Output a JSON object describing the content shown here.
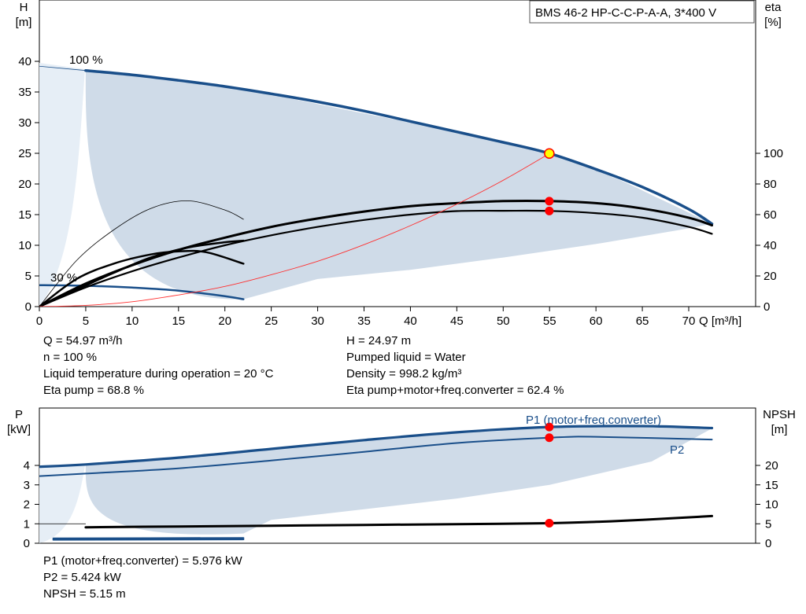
{
  "pump_model": "BMS 46-2 HP-C-C-P-A-A, 3*400 V",
  "chart_data": [
    {
      "type": "line",
      "name": "head-efficiency",
      "x_axis": {
        "label": "Q [m³/h]",
        "min": 0,
        "max": 75,
        "ticks": [
          0,
          5,
          10,
          15,
          20,
          25,
          30,
          35,
          40,
          45,
          50,
          55,
          60,
          65,
          70
        ]
      },
      "y_axis_left": {
        "label_line1": "H",
        "label_line2": "[m]",
        "min": 0,
        "max": 40,
        "ticks": [
          0,
          5,
          10,
          15,
          20,
          25,
          30,
          35,
          40
        ]
      },
      "y_axis_right": {
        "label_line1": "eta",
        "label_line2": "[%]",
        "min": 0,
        "max": 100,
        "ticks": [
          0,
          20,
          40,
          60,
          80,
          100
        ]
      },
      "speed_labels": {
        "max": "100 %",
        "min": "30 %"
      },
      "operating_region": [
        [
          0,
          39.2
        ],
        [
          5,
          38.5
        ],
        [
          15,
          36.8
        ],
        [
          25,
          34.5
        ],
        [
          35,
          31.5
        ],
        [
          45,
          28.5
        ],
        [
          55,
          25
        ],
        [
          62,
          21
        ],
        [
          67,
          17.5
        ],
        [
          72.5,
          13.5
        ],
        [
          69,
          12.5
        ],
        [
          60,
          10.2
        ],
        [
          50,
          8
        ],
        [
          40,
          6
        ],
        [
          30,
          4.5
        ],
        [
          22,
          1.2
        ]
      ],
      "series": [
        {
          "name": "",
          "role": "head-100",
          "axis": "left",
          "points": [
            [
              5,
              38.5
            ],
            [
              10,
              37.8
            ],
            [
              15,
              36.9
            ],
            [
              20,
              35.9
            ],
            [
              25,
              34.7
            ],
            [
              30,
              33.4
            ],
            [
              35,
              31.9
            ],
            [
              40,
              30.2
            ],
            [
              45,
              28.5
            ],
            [
              50,
              26.8
            ],
            [
              55,
              24.97
            ],
            [
              60,
              22.4
            ],
            [
              65,
              19.5
            ],
            [
              70,
              15.9
            ],
            [
              72.5,
              13.5
            ]
          ]
        },
        {
          "name": "",
          "role": "head-30",
          "axis": "left",
          "points": [
            [
              0,
              3.5
            ],
            [
              5,
              3.4
            ],
            [
              10,
              3.1
            ],
            [
              15,
              2.6
            ],
            [
              20,
              1.7
            ],
            [
              22,
              1.2
            ]
          ]
        },
        {
          "name": "",
          "role": "eta-pump-motor-conv",
          "axis": "right",
          "points": [
            [
              0,
              0
            ],
            [
              5,
              12.5
            ],
            [
              10,
              23
            ],
            [
              15,
              32
            ],
            [
              20,
              40
            ],
            [
              25,
              46.5
            ],
            [
              30,
              52
            ],
            [
              35,
              56.5
            ],
            [
              40,
              60
            ],
            [
              45,
              62.3
            ],
            [
              50,
              62.5
            ],
            [
              55,
              62.4
            ],
            [
              60,
              61
            ],
            [
              65,
              58
            ],
            [
              70,
              52
            ],
            [
              72.5,
              47.5
            ]
          ]
        },
        {
          "name": "",
          "role": "eta-pump",
          "axis": "right",
          "points": [
            [
              0,
              0
            ],
            [
              5,
              15
            ],
            [
              10,
              27
            ],
            [
              15,
              37
            ],
            [
              20,
              45
            ],
            [
              25,
              52
            ],
            [
              30,
              57.5
            ],
            [
              35,
              62
            ],
            [
              40,
              65.5
            ],
            [
              45,
              67.5
            ],
            [
              50,
              68.8
            ],
            [
              55,
              68.8
            ],
            [
              60,
              67.5
            ],
            [
              65,
              64
            ],
            [
              70,
              58
            ],
            [
              72.5,
              53
            ]
          ]
        },
        {
          "name": "",
          "role": "eta-pump-30",
          "axis": "right",
          "points": [
            [
              0,
              0
            ],
            [
              4,
              11
            ],
            [
              8,
              22
            ],
            [
              12,
              32
            ],
            [
              16,
              38.5
            ],
            [
              20,
              42
            ],
            [
              22,
              43
            ]
          ]
        },
        {
          "name": "",
          "role": "eta-pump-motor-30",
          "axis": "right",
          "points": [
            [
              0,
              0
            ],
            [
              4,
              18
            ],
            [
              8,
              28
            ],
            [
              12,
              34
            ],
            [
              15,
              36
            ],
            [
              18,
              35.5
            ],
            [
              22,
              28
            ]
          ]
        },
        {
          "name": "",
          "role": "eta-thin-low",
          "axis": "right",
          "points": [
            [
              0,
              0
            ],
            [
              4,
              30
            ],
            [
              8,
              50
            ],
            [
              12,
              64
            ],
            [
              16,
              69
            ],
            [
              20,
              63
            ],
            [
              22,
              57
            ]
          ]
        },
        {
          "name": "",
          "role": "system-curve",
          "axis": "left",
          "points": [
            [
              0,
              0
            ],
            [
              5,
              0.2
            ],
            [
              10,
              0.8
            ],
            [
              15,
              1.9
            ],
            [
              20,
              3.3
            ],
            [
              25,
              5.2
            ],
            [
              30,
              7.4
            ],
            [
              35,
              10.1
            ],
            [
              40,
              13.2
            ],
            [
              45,
              16.7
            ],
            [
              50,
              20.6
            ],
            [
              55,
              24.97
            ]
          ]
        }
      ],
      "markers": [
        {
          "role": "duty-point",
          "x": 54.97,
          "y": 24.97,
          "axis": "left"
        },
        {
          "role": "eta-pump-point",
          "x": 54.97,
          "y": 68.8,
          "axis": "right"
        },
        {
          "role": "eta-total-point",
          "x": 54.97,
          "y": 62.4,
          "axis": "right"
        }
      ]
    },
    {
      "type": "line",
      "name": "power-npsh",
      "x_axis": {
        "min": 0,
        "max": 75
      },
      "y_axis_left": {
        "label_line1": "P",
        "label_line2": "[kW]",
        "min": 0,
        "max": 6,
        "ticks": [
          0,
          1,
          2,
          3,
          4
        ]
      },
      "y_axis_right": {
        "label_line1": "NPSH",
        "label_line2": "[m]",
        "min": 0,
        "max": 30,
        "ticks": [
          0,
          5,
          10,
          15,
          20
        ]
      },
      "operating_region": [
        [
          0,
          3.95
        ],
        [
          5,
          4.05
        ],
        [
          20,
          4.6
        ],
        [
          35,
          5.3
        ],
        [
          55,
          5.98
        ],
        [
          65,
          5.95
        ],
        [
          72.5,
          5.9
        ],
        [
          66,
          4.2
        ],
        [
          55,
          3.0
        ],
        [
          45,
          2.3
        ],
        [
          35,
          1.75
        ],
        [
          25,
          1.2
        ],
        [
          22,
          0.5
        ]
      ],
      "series": [
        {
          "name": "P1 (motor+freq.converter)",
          "axis": "left",
          "points": [
            [
              0,
              3.93
            ],
            [
              5,
              4.05
            ],
            [
              15,
              4.4
            ],
            [
              25,
              4.85
            ],
            [
              35,
              5.3
            ],
            [
              45,
              5.7
            ],
            [
              55,
              5.976
            ],
            [
              65,
              6.02
            ],
            [
              72.5,
              5.92
            ]
          ]
        },
        {
          "name": "P2",
          "axis": "left",
          "points": [
            [
              0,
              3.45
            ],
            [
              5,
              3.58
            ],
            [
              15,
              3.85
            ],
            [
              25,
              4.25
            ],
            [
              35,
              4.7
            ],
            [
              45,
              5.15
            ],
            [
              55,
              5.424
            ],
            [
              60,
              5.47
            ],
            [
              72.5,
              5.33
            ]
          ]
        },
        {
          "name": "",
          "role": "npsh",
          "axis": "right",
          "points": [
            [
              5,
              4.1
            ],
            [
              15,
              4.3
            ],
            [
              25,
              4.5
            ],
            [
              35,
              4.7
            ],
            [
              45,
              4.9
            ],
            [
              55,
              5.15
            ],
            [
              60,
              5.5
            ],
            [
              65,
              6.0
            ],
            [
              72.5,
              7.0
            ]
          ]
        },
        {
          "name": "",
          "role": "p1-30",
          "axis": "left",
          "points": [
            [
              1.5,
              0.25
            ],
            [
              22,
              0.27
            ]
          ]
        },
        {
          "name": "",
          "role": "p2-30",
          "axis": "left",
          "points": [
            [
              1.5,
              0.18
            ],
            [
              22,
              0.2
            ]
          ]
        }
      ],
      "markers": [
        {
          "role": "p1-point",
          "x": 54.97,
          "y": 5.976,
          "axis": "left"
        },
        {
          "role": "p2-point",
          "x": 54.97,
          "y": 5.424,
          "axis": "left"
        },
        {
          "role": "npsh-point",
          "x": 54.97,
          "y": 5.15,
          "axis": "right"
        }
      ]
    }
  ],
  "info_top_left": [
    "Q = 54.97 m³/h",
    "n = 100 %",
    "Liquid temperature during operation = 20 °C",
    "Eta pump = 68.8 %"
  ],
  "info_top_right": [
    "H = 24.97 m",
    "Pumped liquid = Water",
    "Density = 998.2 kg/m³",
    "Eta pump+motor+freq.converter = 62.4 %"
  ],
  "info_bottom": [
    "P1 (motor+freq.converter) = 5.976 kW",
    "P2 = 5.424 kW",
    "NPSH = 5.15 m"
  ],
  "colors": {
    "curve_blue": "#1a4f8a",
    "region_fill": "#cfdbe8",
    "region_light": "#e6eef6",
    "duty_marker": "#ffff00",
    "point_red": "#ff0000",
    "system_curve": "#ff3030"
  }
}
